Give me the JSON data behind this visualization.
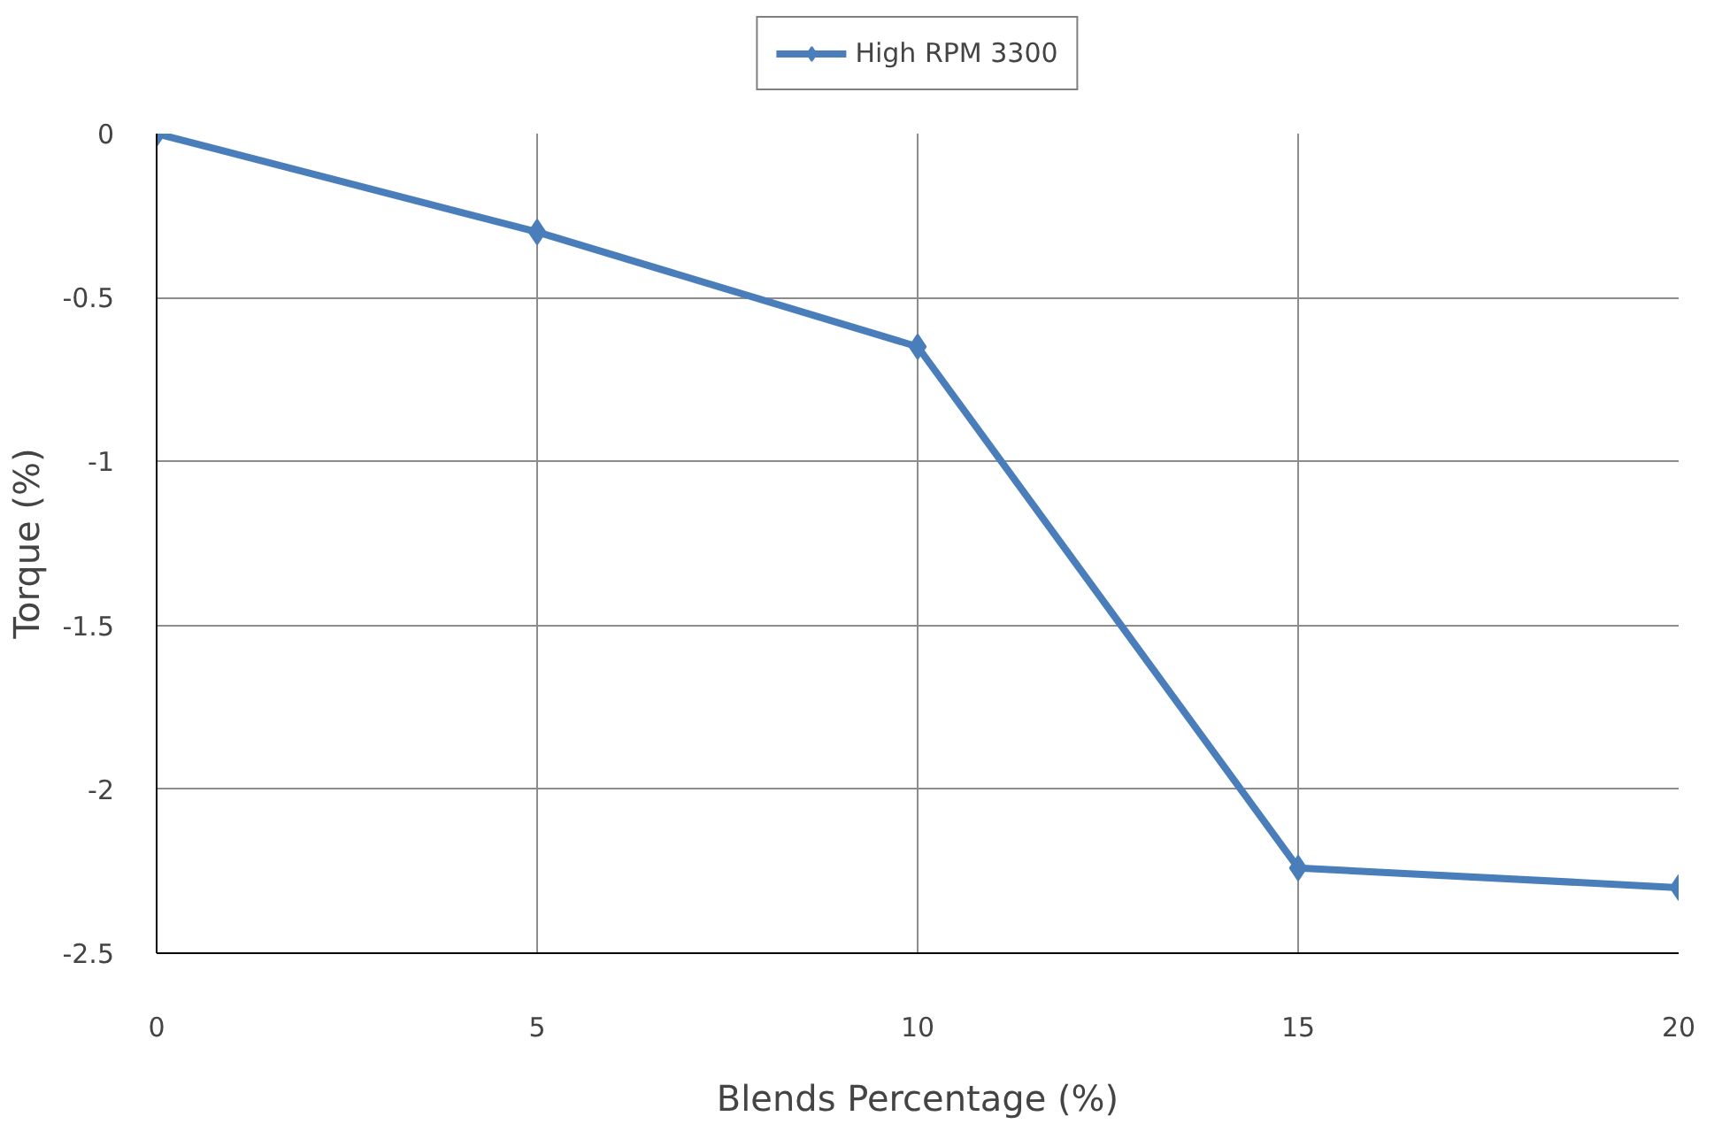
{
  "chart_data": {
    "type": "line",
    "xlabel": "Blends Percentage (%)",
    "ylabel": "Torque (%)",
    "x": [
      0,
      5,
      10,
      15,
      20
    ],
    "series": [
      {
        "name": "High RPM 3300",
        "color": "#4a7ebb",
        "values": [
          0,
          -0.3,
          -0.65,
          -2.24,
          -2.3
        ]
      }
    ],
    "xlim": [
      0,
      20
    ],
    "ylim": [
      -2.5,
      0
    ],
    "xticks": [
      0,
      5,
      10,
      15,
      20
    ],
    "yticks": [
      0,
      -0.5,
      -1,
      -1.5,
      -2,
      -2.5
    ],
    "grid": true,
    "legend": "top",
    "marker": "diamond",
    "line_style": "solid"
  }
}
